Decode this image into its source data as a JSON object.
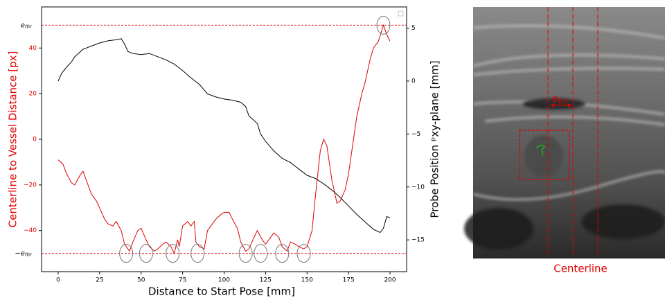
{
  "chart_data": {
    "type": "line",
    "xlabel": "Distance to Start Pose [mm]",
    "ylabel": "Centerline to Vessel Distance [px]",
    "y2label": "Probe Position ᵖxy-plane [mm]",
    "xlim": [
      -10,
      210
    ],
    "xticks": [
      0,
      25,
      50,
      75,
      100,
      125,
      150,
      175,
      200
    ],
    "ylim": [
      -58,
      58
    ],
    "yticks": [
      {
        "value": -40,
        "label": "−40"
      },
      {
        "value": -20,
        "label": "−20"
      },
      0,
      20,
      40
    ],
    "y2lim": [
      -18,
      7
    ],
    "y2ticks": [
      {
        "value": -15,
        "label": "−15"
      },
      {
        "value": -10,
        "label": "−10"
      },
      {
        "value": -5,
        "label": "−5"
      },
      0,
      5
    ],
    "hlines": [
      {
        "value": 50,
        "color": "#e00000",
        "label": {
          "base": "e",
          "sub": "thr"
        }
      },
      {
        "value": -50,
        "color": "#e00000",
        "label": {
          "base": "−e",
          "sub": "thr"
        }
      }
    ],
    "series": [
      {
        "color": "#e00000",
        "x": [
          0,
          3,
          5,
          8,
          10,
          13,
          15,
          18,
          20,
          23,
          25,
          28,
          30,
          33,
          35,
          38,
          40,
          43,
          45,
          48,
          50,
          53,
          55,
          58,
          60,
          63,
          65,
          68,
          70,
          72,
          73,
          75,
          78,
          80,
          82,
          83,
          85,
          88,
          90,
          93,
          95,
          98,
          100,
          103,
          105,
          108,
          110,
          113,
          115,
          118,
          120,
          123,
          125,
          128,
          130,
          133,
          135,
          138,
          140,
          143,
          145,
          148,
          150,
          153,
          155,
          158,
          160,
          162,
          165,
          168,
          170,
          173,
          175,
          178,
          180,
          183,
          185,
          188,
          190,
          193,
          196,
          198,
          200
        ],
        "values": [
          -9,
          -11,
          -15,
          -19,
          -20,
          -16,
          -14,
          -20,
          -24,
          -27,
          -30,
          -35,
          -37,
          -38,
          -36,
          -40,
          -46,
          -49,
          -45,
          -40,
          -39,
          -44,
          -47,
          -49,
          -48,
          -46,
          -45,
          -47,
          -50,
          -44,
          -47,
          -38,
          -36,
          -38,
          -36,
          -45,
          -47,
          -48,
          -40,
          -37,
          -35,
          -33,
          -32,
          -32,
          -35,
          -39,
          -45,
          -49,
          -48,
          -43,
          -40,
          -44,
          -46,
          -43,
          -41,
          -43,
          -47,
          -49,
          -45,
          -46,
          -47,
          -48,
          -47,
          -40,
          -25,
          -5,
          0,
          -3,
          -18,
          -28,
          -27,
          -22,
          -15,
          0,
          10,
          20,
          25,
          35,
          40,
          43,
          50,
          46,
          43
        ]
      },
      {
        "color": "#000000",
        "axis": "y2",
        "x": [
          0,
          2,
          5,
          8,
          10,
          15,
          20,
          25,
          30,
          35,
          38,
          40,
          42,
          45,
          50,
          55,
          60,
          65,
          70,
          75,
          80,
          85,
          90,
          95,
          100,
          105,
          110,
          113,
          115,
          120,
          122,
          125,
          130,
          135,
          140,
          145,
          150,
          155,
          160,
          165,
          170,
          175,
          180,
          185,
          190,
          194,
          196,
          198,
          200
        ],
        "values": [
          0,
          0.7,
          1.3,
          1.8,
          2.3,
          3,
          3.3,
          3.6,
          3.8,
          3.9,
          4,
          3.5,
          2.8,
          2.6,
          2.5,
          2.6,
          2.3,
          2,
          1.6,
          1,
          0.3,
          -0.3,
          -1.2,
          -1.5,
          -1.7,
          -1.8,
          -2,
          -2.4,
          -3.3,
          -4,
          -5,
          -5.7,
          -6.6,
          -7.3,
          -7.7,
          -8.3,
          -8.9,
          -9.2,
          -9.7,
          -10.3,
          -11,
          -11.8,
          -12.6,
          -13.3,
          -14,
          -14.3,
          -13.9,
          -12.8,
          -12.9
        ]
      }
    ],
    "highlight_x": [
      41,
      53,
      69,
      84,
      113,
      122,
      135,
      148,
      196
    ],
    "highlight_y": [
      -50,
      -50,
      -50,
      -50,
      -50,
      -50,
      -50,
      -50,
      50
    ]
  },
  "image": {
    "caption": "Centerline",
    "threshold_label": {
      "base": "e",
      "sub": "thr"
    }
  }
}
